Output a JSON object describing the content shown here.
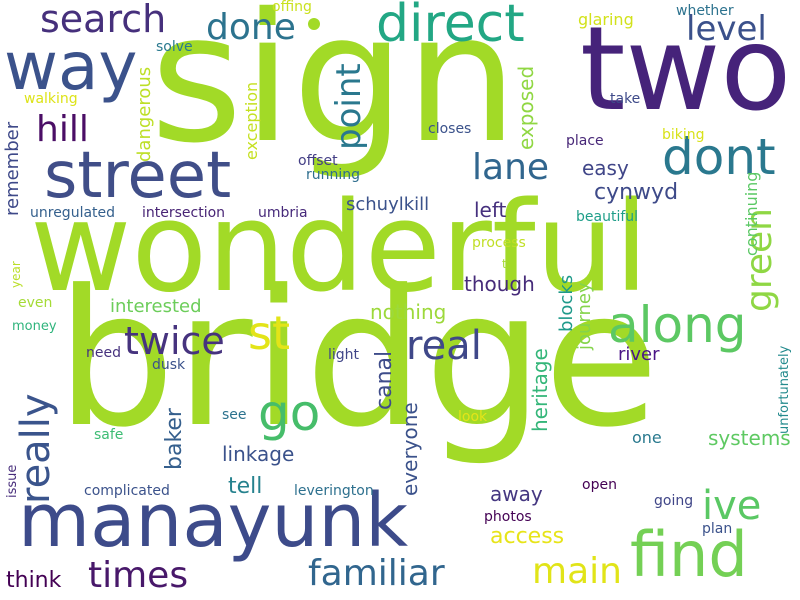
{
  "words": [
    {
      "text": "bridge",
      "color": "#a2da27"
    },
    {
      "text": "wonderful",
      "color": "#a2da27"
    },
    {
      "text": "sign",
      "color": "#a2da27"
    },
    {
      "text": "manayunk",
      "color": "#3d4b8a"
    },
    {
      "text": "two",
      "color": "#46237a"
    },
    {
      "text": "street",
      "color": "#404e88"
    },
    {
      "text": "way",
      "color": "#3b528b"
    },
    {
      "text": "direct",
      "color": "#22a784"
    },
    {
      "text": "find",
      "color": "#74d055"
    },
    {
      "text": "along",
      "color": "#5cc863"
    },
    {
      "text": "dont",
      "color": "#2a788e"
    },
    {
      "text": "search",
      "color": "#46307c"
    },
    {
      "text": "done",
      "color": "#2c738e"
    },
    {
      "text": "level",
      "color": "#3b518b"
    },
    {
      "text": "hill",
      "color": "#4b0e66"
    },
    {
      "text": "point",
      "color": "#2a788e"
    },
    {
      "text": "lane",
      "color": "#31668e"
    },
    {
      "text": "st",
      "color": "#e3e418"
    },
    {
      "text": "go",
      "color": "#46bd6a"
    },
    {
      "text": "real",
      "color": "#3f4889"
    },
    {
      "text": "twice",
      "color": "#46337e"
    },
    {
      "text": "ive",
      "color": "#5ac864"
    },
    {
      "text": "really",
      "color": "#3a548c"
    },
    {
      "text": "times",
      "color": "#48186a"
    },
    {
      "text": "familiar",
      "color": "#31668e"
    },
    {
      "text": "main",
      "color": "#e1e418"
    },
    {
      "text": "green",
      "color": "#8fd744"
    },
    {
      "text": "access",
      "color": "#e7e419"
    },
    {
      "text": "think",
      "color": "#440154"
    },
    {
      "text": "cynwyd",
      "color": "#3e4a89"
    },
    {
      "text": "easy",
      "color": "#404688"
    },
    {
      "text": "left",
      "color": "#46307e"
    },
    {
      "text": "exposed",
      "color": "#90d743"
    },
    {
      "text": "schuylkill",
      "color": "#3b528b"
    },
    {
      "text": "nothing",
      "color": "#9dd93b"
    },
    {
      "text": "canal",
      "color": "#3e4c8a"
    },
    {
      "text": "heritage",
      "color": "#34b679"
    },
    {
      "text": "baker",
      "color": "#355f8d"
    },
    {
      "text": "linkage",
      "color": "#3b528b"
    },
    {
      "text": "everyone",
      "color": "#3b528b"
    },
    {
      "text": "tell",
      "color": "#26828e"
    },
    {
      "text": "away",
      "color": "#453781"
    },
    {
      "text": "systems",
      "color": "#5ec962"
    },
    {
      "text": "journey",
      "color": "#84d44b"
    },
    {
      "text": "blocks",
      "color": "#1f9a8a"
    },
    {
      "text": "though",
      "color": "#472c7a"
    },
    {
      "text": "interested",
      "color": "#6ccd5a"
    },
    {
      "text": "remember",
      "color": "#3e4989"
    },
    {
      "text": "dangerous",
      "color": "#bddf26"
    },
    {
      "text": "exception",
      "color": "#c5e021"
    },
    {
      "text": "continuing",
      "color": "#5ac864"
    },
    {
      "text": "glaring",
      "color": "#d2e21b"
    },
    {
      "text": "whether",
      "color": "#2c728e"
    },
    {
      "text": "offing",
      "color": "#cae11f"
    },
    {
      "text": "solve",
      "color": "#29798e"
    },
    {
      "text": "walking",
      "color": "#dde318"
    },
    {
      "text": "closes",
      "color": "#3b528b"
    },
    {
      "text": "take",
      "color": "#3e4a89"
    },
    {
      "text": "place",
      "color": "#482878"
    },
    {
      "text": "biking",
      "color": "#d8e219"
    },
    {
      "text": "offset",
      "color": "#433e85"
    },
    {
      "text": "running",
      "color": "#2e6e8e"
    },
    {
      "text": "unregulated",
      "color": "#35608d"
    },
    {
      "text": "intersection",
      "color": "#482475"
    },
    {
      "text": "umbria",
      "color": "#472a7a"
    },
    {
      "text": "beautiful",
      "color": "#1f9e89"
    },
    {
      "text": "process",
      "color": "#c0df25"
    },
    {
      "text": "t",
      "color": "#a5db36"
    },
    {
      "text": "year",
      "color": "#bade28"
    },
    {
      "text": "even",
      "color": "#a5db36"
    },
    {
      "text": "money",
      "color": "#2fb47c"
    },
    {
      "text": "need",
      "color": "#46327e"
    },
    {
      "text": "light",
      "color": "#404688"
    },
    {
      "text": "river",
      "color": "#4a1486"
    },
    {
      "text": "unfortunately",
      "color": "#238a8d"
    },
    {
      "text": "dusk",
      "color": "#3b528b"
    },
    {
      "text": "see",
      "color": "#2c728e"
    },
    {
      "text": "look",
      "color": "#e4e419"
    },
    {
      "text": "one",
      "color": "#29798e"
    },
    {
      "text": "safe",
      "color": "#3dbc74"
    },
    {
      "text": "issue",
      "color": "#472d7b"
    },
    {
      "text": "complicated",
      "color": "#3b528b"
    },
    {
      "text": "leverington",
      "color": "#2d708e"
    },
    {
      "text": "open",
      "color": "#440154"
    },
    {
      "text": "going",
      "color": "#404688"
    },
    {
      "text": "photos",
      "color": "#440154"
    },
    {
      "text": "plan",
      "color": "#3b528b"
    }
  ]
}
